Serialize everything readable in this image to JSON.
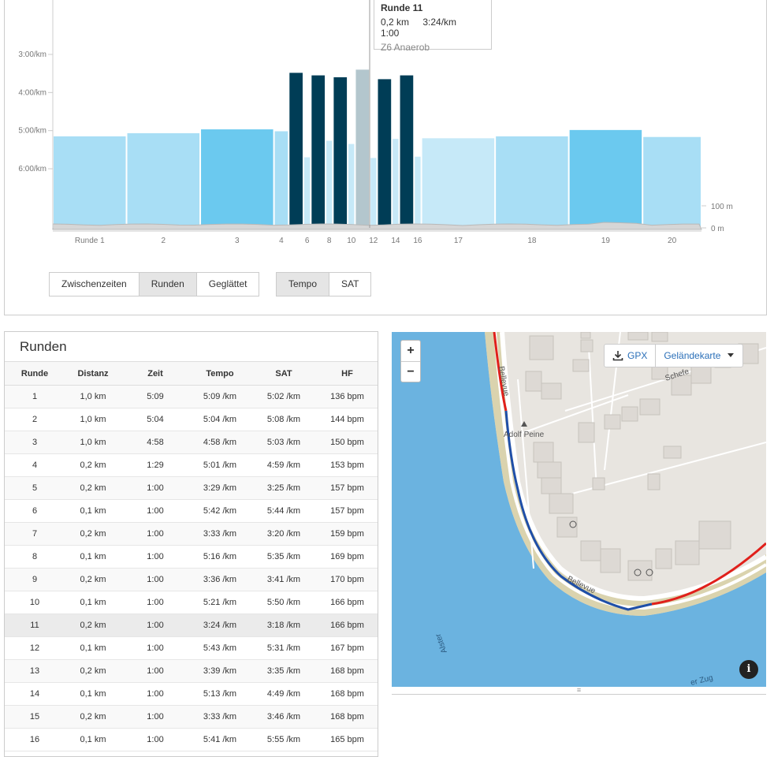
{
  "chart_data": {
    "type": "bar",
    "y_labels": [
      "3:00/km",
      "4:00/km",
      "5:00/km",
      "6:00/km"
    ],
    "elev_labels": [
      "100 m",
      "0 m"
    ],
    "x_labels": [
      "Runde 1",
      "2",
      "3",
      "4",
      "6",
      "8",
      "10",
      "12",
      "14",
      "16",
      "17",
      "18",
      "19",
      "20"
    ],
    "laps": [
      {
        "lap": 1,
        "distance_km": 1.0,
        "pace": "5:09"
      },
      {
        "lap": 2,
        "distance_km": 1.0,
        "pace": "5:04"
      },
      {
        "lap": 3,
        "distance_km": 1.0,
        "pace": "4:58"
      },
      {
        "lap": 4,
        "distance_km": 0.2,
        "pace": "5:01"
      },
      {
        "lap": 5,
        "distance_km": 0.2,
        "pace": "3:29"
      },
      {
        "lap": 6,
        "distance_km": 0.1,
        "pace": "5:42"
      },
      {
        "lap": 7,
        "distance_km": 0.2,
        "pace": "3:33"
      },
      {
        "lap": 8,
        "distance_km": 0.1,
        "pace": "5:16"
      },
      {
        "lap": 9,
        "distance_km": 0.2,
        "pace": "3:36"
      },
      {
        "lap": 10,
        "distance_km": 0.1,
        "pace": "5:21"
      },
      {
        "lap": 11,
        "distance_km": 0.2,
        "pace": "3:24"
      },
      {
        "lap": 12,
        "distance_km": 0.1,
        "pace": "5:43"
      },
      {
        "lap": 13,
        "distance_km": 0.2,
        "pace": "3:39"
      },
      {
        "lap": 14,
        "distance_km": 0.1,
        "pace": "5:13"
      },
      {
        "lap": 15,
        "distance_km": 0.2,
        "pace": "3:33"
      },
      {
        "lap": 16,
        "distance_km": 0.1,
        "pace": "5:41"
      },
      {
        "lap": 17,
        "distance_km": 1.0,
        "pace": "5:12"
      },
      {
        "lap": 18,
        "distance_km": 1.0,
        "pace": "5:09"
      },
      {
        "lap": 19,
        "distance_km": 1.0,
        "pace": "4:59"
      },
      {
        "lap": 20,
        "distance_km": 0.8,
        "pace": "5:10"
      }
    ],
    "colors": {
      "z1": "#c6e9f8",
      "z2": "#a8def5",
      "z3": "#6bc9ef",
      "z6": "#003d56",
      "selected": "#b3c6cd",
      "elevation": "#d6d6d6"
    }
  },
  "tooltip": {
    "title": "Runde 11",
    "distance": "0,2 km",
    "pace": "3:24/km",
    "time": "1:00",
    "zone": "Z6 Anaerob"
  },
  "view_buttons": [
    "Zwischenzeiten",
    "Runden",
    "Geglättet"
  ],
  "metric_buttons": [
    "Tempo",
    "SAT"
  ],
  "laps_table": {
    "title": "Runden",
    "headers": [
      "Runde",
      "Distanz",
      "Zeit",
      "Tempo",
      "SAT",
      "HF"
    ],
    "rows": [
      [
        "1",
        "1,0 km",
        "5:09",
        "5:09 /km",
        "5:02 /km",
        "136 bpm"
      ],
      [
        "2",
        "1,0 km",
        "5:04",
        "5:04 /km",
        "5:08 /km",
        "144 bpm"
      ],
      [
        "3",
        "1,0 km",
        "4:58",
        "4:58 /km",
        "5:03 /km",
        "150 bpm"
      ],
      [
        "4",
        "0,2 km",
        "1:29",
        "5:01 /km",
        "4:59 /km",
        "153 bpm"
      ],
      [
        "5",
        "0,2 km",
        "1:00",
        "3:29 /km",
        "3:25 /km",
        "157 bpm"
      ],
      [
        "6",
        "0,1 km",
        "1:00",
        "5:42 /km",
        "5:44 /km",
        "157 bpm"
      ],
      [
        "7",
        "0,2 km",
        "1:00",
        "3:33 /km",
        "3:20 /km",
        "159 bpm"
      ],
      [
        "8",
        "0,1 km",
        "1:00",
        "5:16 /km",
        "5:35 /km",
        "169 bpm"
      ],
      [
        "9",
        "0,2 km",
        "1:00",
        "3:36 /km",
        "3:41 /km",
        "170 bpm"
      ],
      [
        "10",
        "0,1 km",
        "1:00",
        "5:21 /km",
        "5:50 /km",
        "166 bpm"
      ],
      [
        "11",
        "0,2 km",
        "1:00",
        "3:24 /km",
        "3:18 /km",
        "166 bpm"
      ],
      [
        "12",
        "0,1 km",
        "1:00",
        "5:43 /km",
        "5:31 /km",
        "167 bpm"
      ],
      [
        "13",
        "0,2 km",
        "1:00",
        "3:39 /km",
        "3:35 /km",
        "168 bpm"
      ],
      [
        "14",
        "0,1 km",
        "1:00",
        "5:13 /km",
        "4:49 /km",
        "168 bpm"
      ],
      [
        "15",
        "0,2 km",
        "1:00",
        "3:33 /km",
        "3:46 /km",
        "168 bpm"
      ],
      [
        "16",
        "0,1 km",
        "1:00",
        "5:41 /km",
        "5:55 /km",
        "165 bpm"
      ]
    ],
    "highlighted_row": 11
  },
  "map": {
    "zoom_in": "+",
    "zoom_out": "−",
    "gpx_label": "GPX",
    "layer_label": "Geländekarte",
    "info_label": "i",
    "labels": {
      "street1": "Bellevue",
      "street2": "Bellevue",
      "street3": "Schefe",
      "poi": "Adolf Peine",
      "river": "Alster",
      "zug": "er Zug"
    },
    "colors": {
      "water": "#6bb3e0",
      "land": "#e8e5e0",
      "route_red": "#e0201b",
      "route_blue": "#1f4fa8"
    }
  }
}
